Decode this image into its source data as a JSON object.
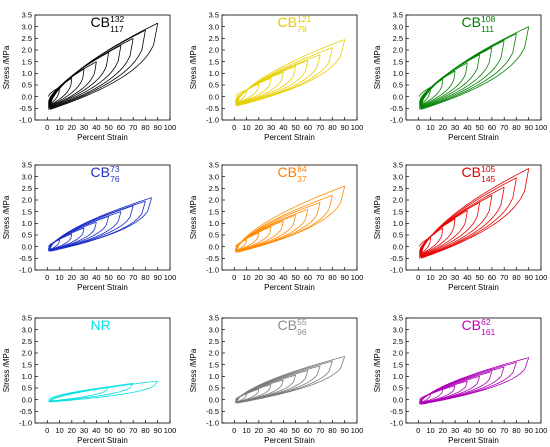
{
  "chart_data": [
    {
      "type": "line",
      "panel_label": {
        "base": "CB",
        "sup": "132",
        "sub": "117"
      },
      "label_color": "#000000",
      "line_color": "#000000",
      "xlabel": "Percent Strain",
      "ylabel": "Stress /MPa",
      "xlim": [
        -10,
        100
      ],
      "ylim": [
        -1.0,
        3.5
      ],
      "xticks": [
        "0",
        "10",
        "20",
        "30",
        "40",
        "50",
        "60",
        "70",
        "80",
        "90",
        "100"
      ],
      "yticks": [
        "-1.0",
        "-0.5",
        "0.0",
        "0.5",
        "1.0",
        "1.5",
        "2.0",
        "2.5",
        "3.0",
        "3.5"
      ],
      "max_strains": [
        10,
        20,
        30,
        40,
        50,
        60,
        70,
        80,
        90
      ],
      "peak_stresses": [
        0.4,
        0.8,
        1.2,
        1.5,
        1.9,
        2.2,
        2.5,
        2.85,
        3.15
      ],
      "min_stress": -0.55
    },
    {
      "type": "line",
      "panel_label": {
        "base": "CB",
        "sup": "121",
        "sub": "79"
      },
      "label_color": "#e6c800",
      "line_color": "#e6d000",
      "xlabel": "Percent Strain",
      "ylabel": "Stress /MPa",
      "xlim": [
        -10,
        100
      ],
      "ylim": [
        -1.0,
        3.5
      ],
      "xticks": [
        "0",
        "10",
        "20",
        "30",
        "40",
        "50",
        "60",
        "70",
        "80",
        "90",
        "100"
      ],
      "yticks": [
        "-1.0",
        "-0.5",
        "0.0",
        "0.5",
        "1.0",
        "1.5",
        "2.0",
        "2.5",
        "3.0",
        "3.5"
      ],
      "max_strains": [
        10,
        20,
        30,
        40,
        50,
        60,
        70,
        80,
        90
      ],
      "peak_stresses": [
        0.3,
        0.55,
        0.8,
        1.05,
        1.3,
        1.55,
        1.8,
        2.1,
        2.45
      ],
      "min_stress": -0.4
    },
    {
      "type": "line",
      "panel_label": {
        "base": "CB",
        "sup": "108",
        "sub": "111"
      },
      "label_color": "#007a00",
      "line_color": "#008000",
      "xlabel": "Percent Strain",
      "ylabel": "Stress /MPa",
      "xlim": [
        -10,
        100
      ],
      "ylim": [
        -1.0,
        3.5
      ],
      "xticks": [
        "0",
        "10",
        "20",
        "30",
        "40",
        "50",
        "60",
        "70",
        "80",
        "90",
        "100"
      ],
      "yticks": [
        "-1.0",
        "-0.5",
        "0.0",
        "0.5",
        "1.0",
        "1.5",
        "2.0",
        "2.5",
        "3.0",
        "3.5"
      ],
      "max_strains": [
        10,
        20,
        30,
        40,
        50,
        60,
        70,
        80,
        90
      ],
      "peak_stresses": [
        0.4,
        0.75,
        1.1,
        1.45,
        1.8,
        2.1,
        2.4,
        2.7,
        3.0
      ],
      "min_stress": -0.55
    },
    {
      "type": "line",
      "panel_label": {
        "base": "CB",
        "sup": "73",
        "sub": "76"
      },
      "label_color": "#1f2fbf",
      "line_color": "#1a2cc8",
      "xlabel": "Percent Strain",
      "ylabel": "Stress /MPa",
      "xlim": [
        -10,
        100
      ],
      "ylim": [
        -1.0,
        3.5
      ],
      "xticks": [
        "0",
        "10",
        "20",
        "30",
        "40",
        "50",
        "60",
        "70",
        "80",
        "90",
        "100"
      ],
      "yticks": [
        "-1.0",
        "-0.5",
        "0.0",
        "0.5",
        "1.0",
        "1.5",
        "2.0",
        "2.5",
        "3.0",
        "3.5"
      ],
      "max_strains": [
        10,
        20,
        30,
        40,
        50,
        60,
        70,
        80,
        85
      ],
      "peak_stresses": [
        0.3,
        0.55,
        0.8,
        1.05,
        1.3,
        1.5,
        1.75,
        1.95,
        2.1
      ],
      "min_stress": -0.2
    },
    {
      "type": "line",
      "panel_label": {
        "base": "CB",
        "sup": "84",
        "sub": "37"
      },
      "label_color": "#ff8000",
      "line_color": "#ff8a00",
      "xlabel": "Percent Strain",
      "ylabel": "Stress /MPa",
      "xlim": [
        -10,
        100
      ],
      "ylim": [
        -1.0,
        3.5
      ],
      "xticks": [
        "0",
        "10",
        "20",
        "30",
        "40",
        "50",
        "60",
        "70",
        "80",
        "90",
        "100"
      ],
      "yticks": [
        "-1.0",
        "-0.5",
        "0.0",
        "0.5",
        "1.0",
        "1.5",
        "2.0",
        "2.5",
        "3.0",
        "3.5"
      ],
      "max_strains": [
        10,
        20,
        30,
        40,
        50,
        60,
        70,
        80,
        90
      ],
      "peak_stresses": [
        0.3,
        0.6,
        0.85,
        1.1,
        1.35,
        1.6,
        1.9,
        2.2,
        2.6
      ],
      "min_stress": -0.25
    },
    {
      "type": "line",
      "panel_label": {
        "base": "CB",
        "sup": "105",
        "sub": "145"
      },
      "label_color": "#e00000",
      "line_color": "#e60000",
      "xlabel": "Percent Strain",
      "ylabel": "Stress /MPa",
      "xlim": [
        -10,
        100
      ],
      "ylim": [
        -1.0,
        3.5
      ],
      "xticks": [
        "0",
        "10",
        "20",
        "30",
        "40",
        "50",
        "60",
        "70",
        "80",
        "90",
        "100"
      ],
      "yticks": [
        "-1.0",
        "-0.5",
        "0.0",
        "0.5",
        "1.0",
        "1.5",
        "2.0",
        "2.5",
        "3.0",
        "3.5"
      ],
      "max_strains": [
        10,
        20,
        30,
        40,
        50,
        60,
        70,
        80,
        90
      ],
      "peak_stresses": [
        0.4,
        0.8,
        1.2,
        1.55,
        1.9,
        2.2,
        2.55,
        2.95,
        3.35
      ],
      "min_stress": -0.5
    },
    {
      "type": "line",
      "panel_label": {
        "base": "NR",
        "sup": "",
        "sub": ""
      },
      "label_color": "#00e5e5",
      "line_color": "#00e0e0",
      "xlabel": "Percent Strain",
      "ylabel": "Stress /MPa",
      "xlim": [
        -10,
        100
      ],
      "ylim": [
        -1.0,
        3.5
      ],
      "xticks": [
        "0",
        "10",
        "20",
        "30",
        "40",
        "50",
        "60",
        "70",
        "80",
        "90",
        "100"
      ],
      "yticks": [
        "-1.0",
        "-0.5",
        "0.0",
        "0.5",
        "1.0",
        "1.5",
        "2.0",
        "2.5",
        "3.0",
        "3.5"
      ],
      "max_strains": [
        50,
        70,
        90
      ],
      "peak_stresses": [
        0.55,
        0.7,
        0.8
      ],
      "min_stress": -0.1
    },
    {
      "type": "line",
      "panel_label": {
        "base": "CB",
        "sup": "55",
        "sub": "96"
      },
      "label_color": "#8c8c8c",
      "line_color": "#7a7a7a",
      "xlabel": "Percent Strain",
      "ylabel": "Stress /MPa",
      "xlim": [
        -10,
        100
      ],
      "ylim": [
        -1.0,
        3.5
      ],
      "xticks": [
        "0",
        "10",
        "20",
        "30",
        "40",
        "50",
        "60",
        "70",
        "80",
        "90",
        "100"
      ],
      "yticks": [
        "-1.0",
        "-0.5",
        "0.0",
        "0.5",
        "1.0",
        "1.5",
        "2.0",
        "2.5",
        "3.0",
        "3.5"
      ],
      "max_strains": [
        10,
        20,
        30,
        40,
        50,
        60,
        70,
        80,
        90
      ],
      "peak_stresses": [
        0.25,
        0.45,
        0.65,
        0.85,
        1.05,
        1.25,
        1.45,
        1.65,
        1.85
      ],
      "min_stress": -0.15
    },
    {
      "type": "line",
      "panel_label": {
        "base": "CB",
        "sup": "62",
        "sub": "161"
      },
      "label_color": "#c000c0",
      "line_color": "#b000b8",
      "xlabel": "Percent Strain",
      "ylabel": "Stress /MPa",
      "xlim": [
        -10,
        100
      ],
      "ylim": [
        -1.0,
        3.5
      ],
      "xticks": [
        "0",
        "10",
        "20",
        "30",
        "40",
        "50",
        "60",
        "70",
        "80",
        "90",
        "100"
      ],
      "yticks": [
        "-1.0",
        "-0.5",
        "0.0",
        "0.5",
        "1.0",
        "1.5",
        "2.0",
        "2.5",
        "3.0",
        "3.5"
      ],
      "max_strains": [
        10,
        20,
        30,
        40,
        50,
        60,
        70,
        80,
        90
      ],
      "peak_stresses": [
        0.25,
        0.45,
        0.6,
        0.8,
        1.0,
        1.2,
        1.4,
        1.6,
        1.8
      ],
      "min_stress": -0.2
    }
  ]
}
